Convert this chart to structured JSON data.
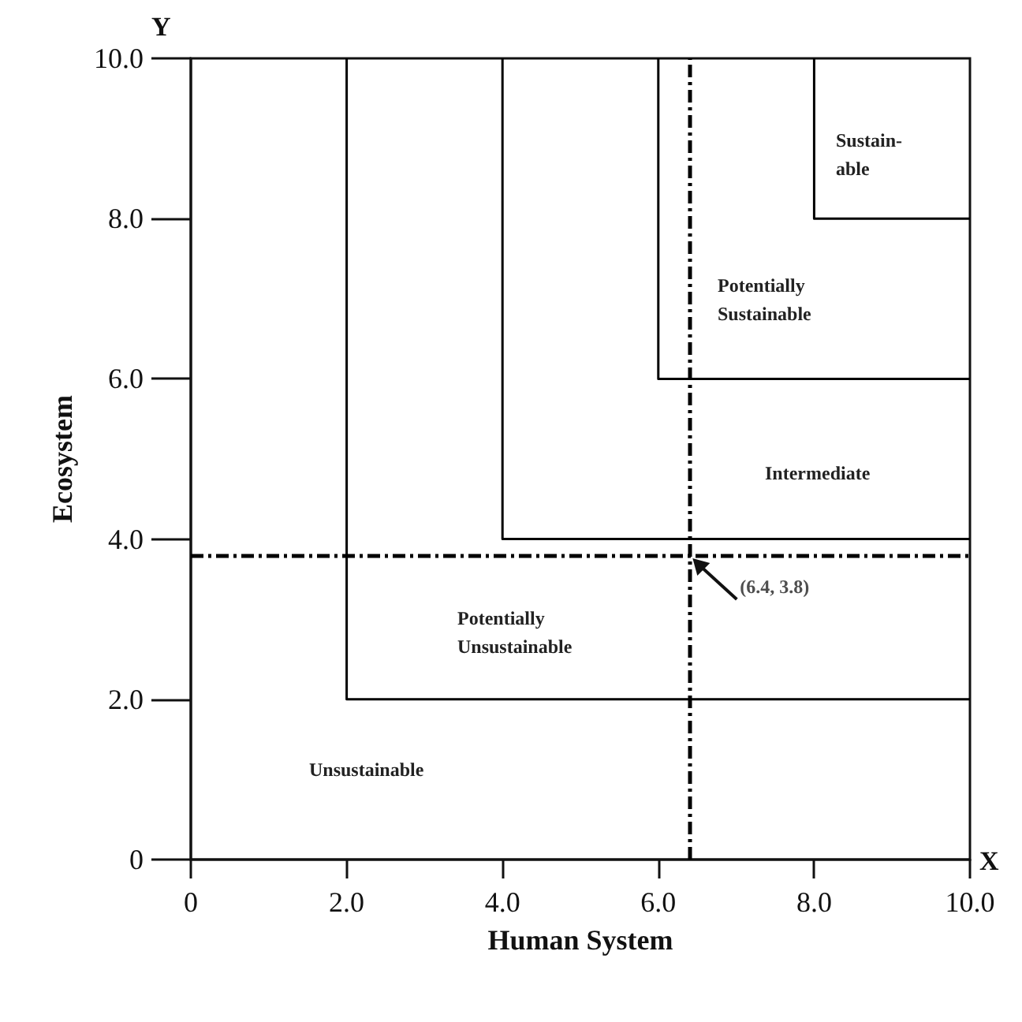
{
  "chart_data": {
    "type": "line",
    "xlabel": "Human System",
    "ylabel": "Ecosystem",
    "xlim": [
      0,
      10
    ],
    "ylim": [
      0,
      10
    ],
    "xticks": [
      0,
      {
        "value": 2,
        "label": "2.0"
      },
      {
        "value": 4,
        "label": "4.0"
      },
      {
        "value": 6,
        "label": "6.0"
      },
      {
        "value": 8,
        "label": "8.0"
      },
      {
        "value": 10,
        "label": "10.0"
      }
    ],
    "yticks": [
      0,
      {
        "value": 2,
        "label": "2.0"
      },
      {
        "value": 4,
        "label": "4.0"
      },
      {
        "value": 6,
        "label": "6.0"
      },
      {
        "value": 8,
        "label": "8.0"
      },
      {
        "value": 10,
        "label": "10.0"
      }
    ],
    "series": [
      {
        "color": "#000000",
        "x": [
          2,
          2,
          10
        ],
        "values": [
          10,
          2,
          2
        ]
      },
      {
        "color": "#000000",
        "x": [
          4,
          4,
          10
        ],
        "values": [
          10,
          4,
          4
        ]
      },
      {
        "color": "#000000",
        "x": [
          6,
          6,
          10
        ],
        "values": [
          10,
          6,
          6
        ]
      },
      {
        "color": "#000000",
        "x": [
          8,
          8,
          10
        ],
        "values": [
          10,
          8,
          8
        ]
      }
    ],
    "ref_lines": [
      {
        "axis": "x",
        "value": 6.4,
        "color": "#000000",
        "line_style": "dashed"
      },
      {
        "axis": "y",
        "value": 3.8,
        "color": "#000000",
        "line_style": "dashed"
      }
    ],
    "annotations": [
      "Y",
      "X",
      "Sustain-\nable",
      "Potentially\nSustainable",
      "Intermediate",
      "Potentially\nUnsustainable",
      "Unsustainable",
      {
        "text": "(6.4, 3.8)",
        "x": 6.4,
        "y": 3.8
      }
    ],
    "marker": "none",
    "line_style": "solid"
  }
}
